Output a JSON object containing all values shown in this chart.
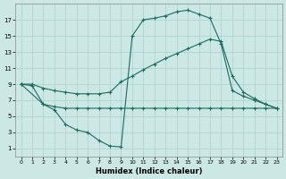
{
  "xlabel": "Humidex (Indice chaleur)",
  "bg_color": "#cce8e4",
  "grid_color": "#aad0cc",
  "line_color": "#1a6b5e",
  "xlim": [
    -0.5,
    23.5
  ],
  "ylim": [
    0,
    19
  ],
  "xticks": [
    0,
    1,
    2,
    3,
    4,
    5,
    6,
    7,
    8,
    9,
    10,
    11,
    12,
    13,
    14,
    15,
    16,
    17,
    18,
    19,
    20,
    21,
    22,
    23
  ],
  "yticks": [
    1,
    3,
    5,
    7,
    9,
    11,
    13,
    15,
    17
  ],
  "curve_arch_x": [
    0,
    1,
    2,
    3,
    4,
    5,
    6,
    7,
    8,
    9,
    10,
    11,
    12,
    13,
    14,
    15,
    16,
    17,
    18,
    19,
    20,
    21,
    22,
    23
  ],
  "curve_arch_y": [
    9,
    8.8,
    6.5,
    5.8,
    4.0,
    3.3,
    3.0,
    2.0,
    1.3,
    1.2,
    15.0,
    17.0,
    17.2,
    17.5,
    18.0,
    18.2,
    17.7,
    17.2,
    14.0,
    8.2,
    7.5,
    7.0,
    6.5,
    6.0
  ],
  "curve_rise_x": [
    0,
    1,
    2,
    3,
    4,
    5,
    6,
    7,
    8,
    9,
    10,
    11,
    12,
    13,
    14,
    15,
    16,
    17,
    18,
    19,
    20,
    21,
    22,
    23
  ],
  "curve_rise_y": [
    9,
    9,
    8.5,
    8.2,
    8.0,
    7.8,
    7.8,
    7.8,
    8.0,
    9.3,
    10.0,
    10.8,
    11.5,
    12.2,
    12.8,
    13.4,
    14.0,
    14.6,
    14.3,
    10.0,
    8.0,
    7.2,
    6.5,
    6.0
  ],
  "curve_flat_x": [
    0,
    2,
    3,
    4,
    5,
    6,
    7,
    8,
    9,
    10,
    11,
    12,
    13,
    14,
    15,
    16,
    17,
    18,
    19,
    20,
    21,
    22,
    23
  ],
  "curve_flat_y": [
    9,
    6.5,
    6.2,
    6.0,
    6.0,
    6.0,
    6.0,
    6.0,
    6.0,
    6.0,
    6.0,
    6.0,
    6.0,
    6.0,
    6.0,
    6.0,
    6.0,
    6.0,
    6.0,
    6.0,
    6.0,
    6.0,
    6.0
  ]
}
